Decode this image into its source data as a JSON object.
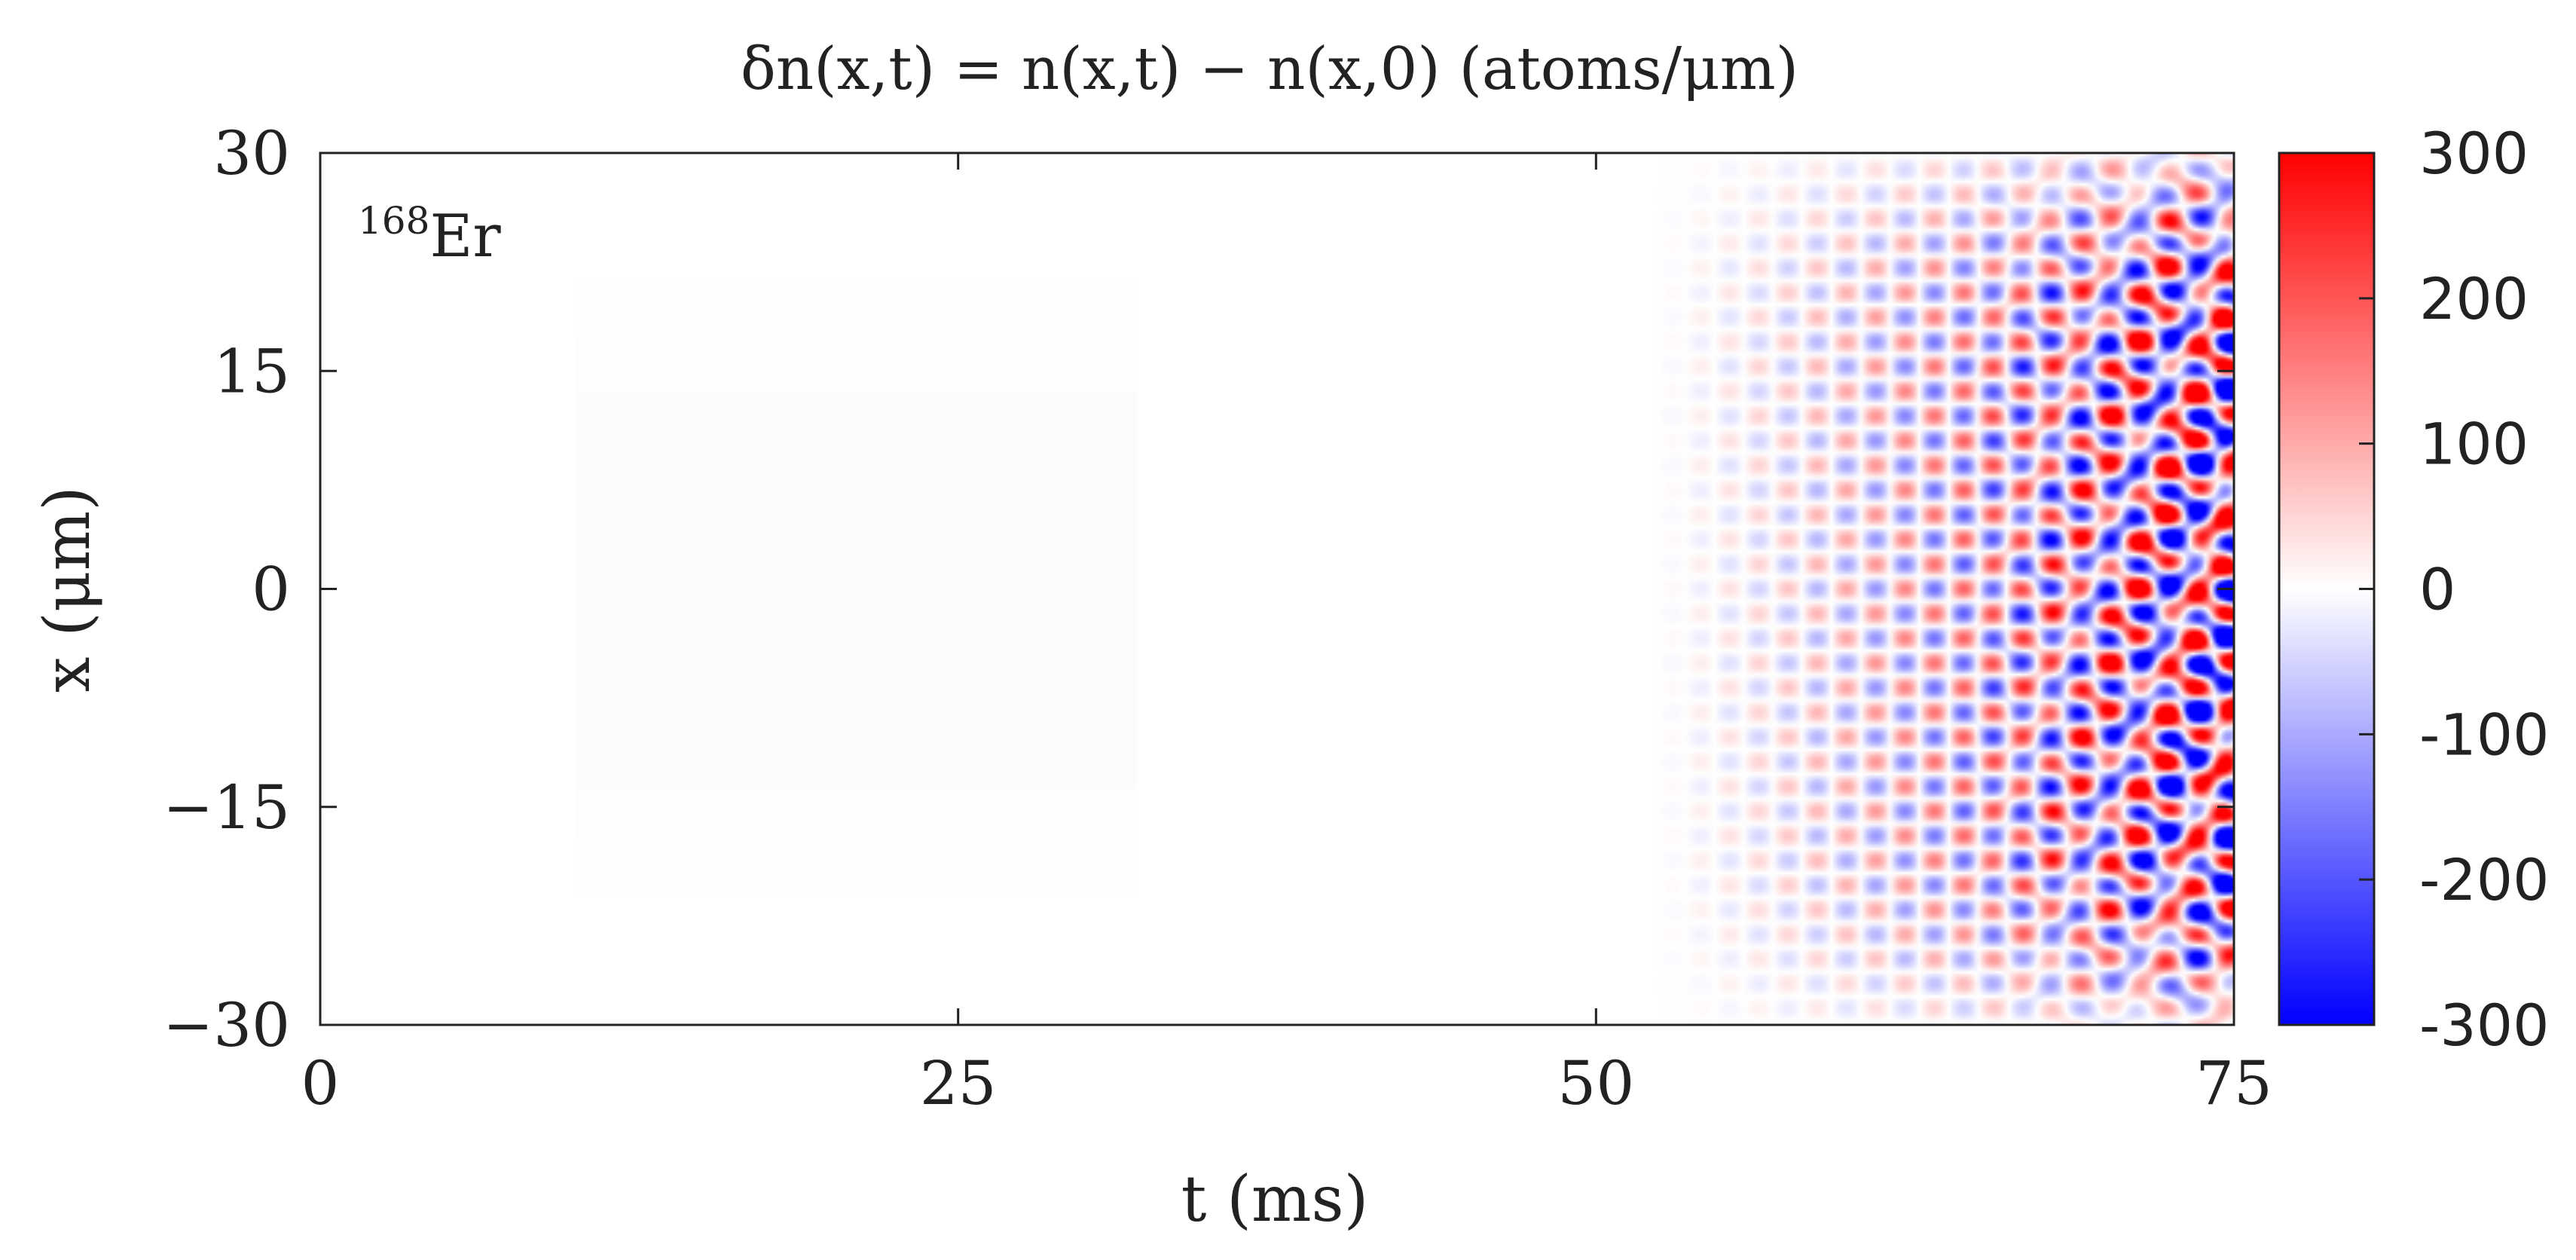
{
  "chart_data": {
    "type": "heatmap",
    "title": "δn(x,t) = n(x,t) − n(x,0)   (atoms/μm)",
    "xlabel": "t (ms)",
    "ylabel": "x (μm)",
    "xlim": [
      0,
      75
    ],
    "ylim": [
      -30,
      30
    ],
    "x_ticks": [
      0,
      25,
      50,
      75
    ],
    "x_tick_labels": [
      "0",
      "25",
      "50",
      "75"
    ],
    "y_ticks": [
      30,
      15,
      0,
      -15,
      -30
    ],
    "y_tick_labels": [
      "30",
      "15",
      "0",
      "−15",
      "−30"
    ],
    "colorbar": {
      "range": [
        -300,
        300
      ],
      "ticks": [
        300,
        200,
        100,
        0,
        -100,
        -200,
        -300
      ],
      "tick_labels": [
        "300",
        "200",
        "100",
        "0",
        "-100",
        "-200",
        "-300"
      ],
      "colormap": [
        "#0000ff",
        "#ffffff",
        "#ff0000"
      ]
    },
    "annotation": {
      "isotope_mass": "168",
      "element": "Er"
    },
    "grid": false,
    "field_description": {
      "quiet_until_ms": 45,
      "growth_onset_ms": 52,
      "max_amplitude": 300,
      "stripe_period_um": 3.4,
      "temporal_period_ms": 2.3,
      "cloud_halfwidth_um": 28
    }
  },
  "colors": {
    "positive": "#ff0000",
    "negative": "#0000ff",
    "zero": "#ffffff",
    "axis": "#222222"
  }
}
